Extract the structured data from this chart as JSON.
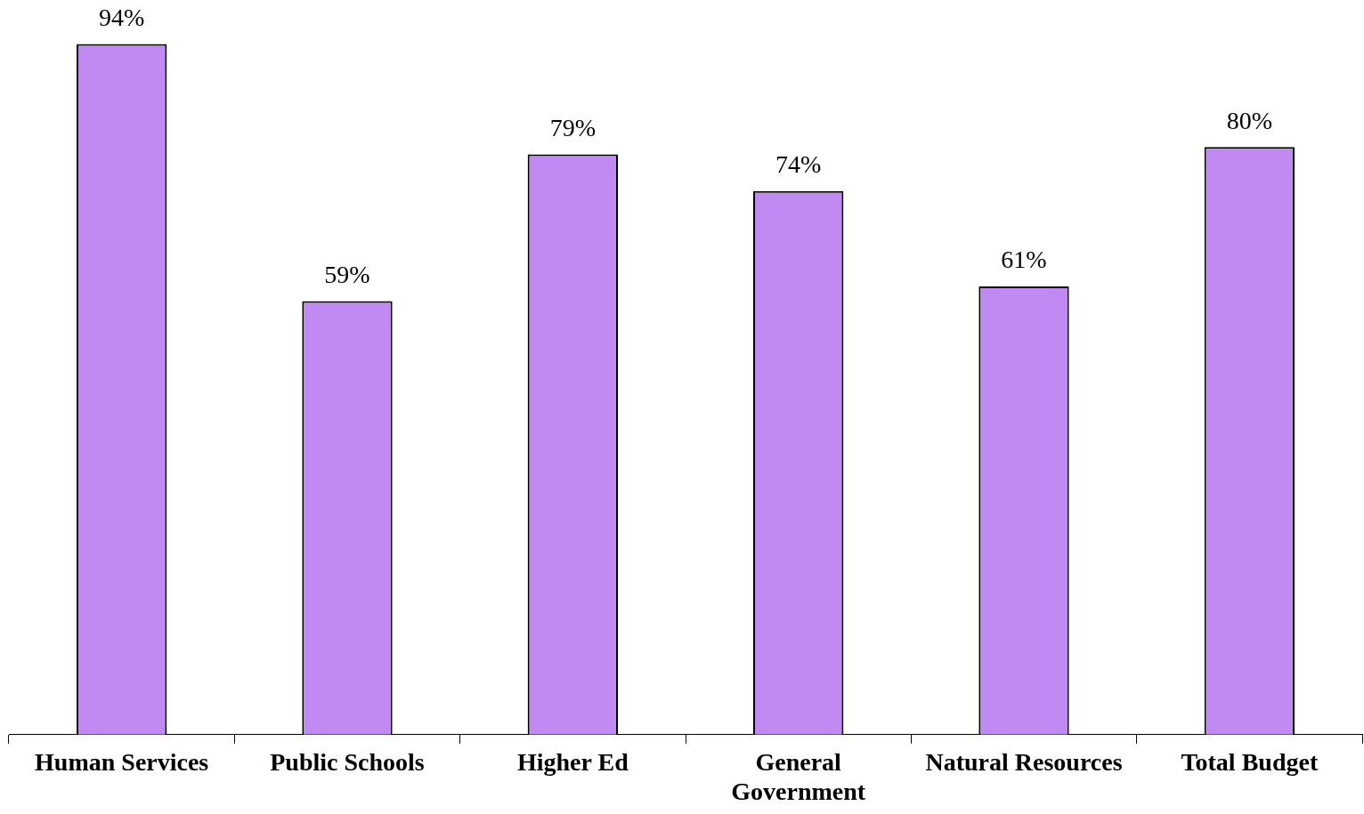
{
  "chart_data": {
    "type": "bar",
    "categories": [
      "Human Services",
      "Public Schools",
      "Higher Ed",
      "General Government",
      "Natural Resources",
      "Total Budget"
    ],
    "values": [
      94,
      59,
      79,
      74,
      61,
      80
    ],
    "color": "#c08af2",
    "value_labels": [
      "94%",
      "59%",
      "79%",
      "74%",
      "61%",
      "80%"
    ],
    "tick_labels": "x",
    "grid": false,
    "legend": false
  }
}
